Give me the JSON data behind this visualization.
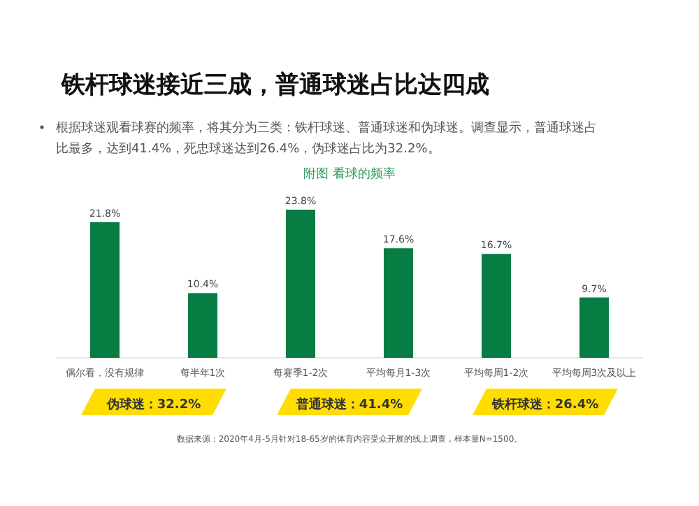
{
  "chart_data": {
    "type": "bar",
    "title": "铁杆球迷接近三成，普通球迷占比达四成",
    "subtitle": "根据球迷观看球赛的频率，将其分为三类：铁杆球迷、普通球迷和伪球迷。调查显示，普通球迷占比最多，达到41.4%，死忠球迷达到26.4%，伪球迷占比为32.2%。",
    "xlabel": "附图  看球的频率",
    "categories": [
      "偶尔看，没有规律",
      "每半年1次",
      "每赛季1-2次",
      "平均每月1-3次",
      "平均每周1-2次",
      "平均每周3次及以上"
    ],
    "values": [
      21.8,
      10.4,
      23.8,
      17.6,
      16.7,
      9.7
    ],
    "color": "#077d43",
    "data_labels": true,
    "value_labels": [
      "21.8%",
      "10.4%",
      "23.8%",
      "17.6%",
      "16.7%",
      "9.7%"
    ],
    "annotations": [
      "伪球迷：32.2%",
      "普通球迷：41.4%",
      "铁杆球迷：26.4%",
      "数据来源：2020年4月-5月针对18-65岁的体育内容受众开展的线上调查，样本量N=1500。"
    ]
  }
}
